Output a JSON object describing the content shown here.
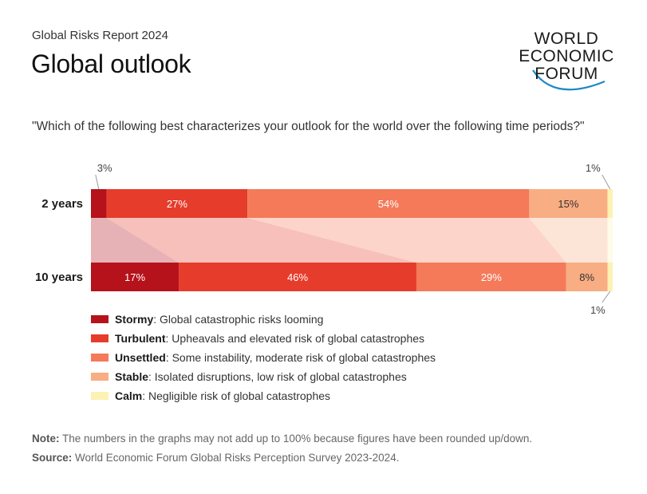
{
  "header": {
    "report": "Global Risks Report 2024",
    "title": "Global outlook"
  },
  "logo": {
    "line1": "WORLD",
    "line2": "ECONOMIC",
    "line3": "FORUM"
  },
  "question": "\"Which of the following best characterizes your outlook for the world over the following time periods?\"",
  "chart_data": {
    "type": "bar",
    "orientation": "horizontal-stacked-100",
    "categories": [
      "2 years",
      "10 years"
    ],
    "series": [
      {
        "name": "Stormy",
        "values": [
          3,
          17
        ],
        "color": "#b5121b"
      },
      {
        "name": "Turbulent",
        "values": [
          27,
          46
        ],
        "color": "#e63c2b"
      },
      {
        "name": "Unsettled",
        "values": [
          54,
          29
        ],
        "color": "#f47a5a"
      },
      {
        "name": "Stable",
        "values": [
          15,
          8
        ],
        "color": "#f8ad82"
      },
      {
        "name": "Calm",
        "values": [
          1,
          1
        ],
        "color": "#fcf2b3"
      }
    ],
    "labels": [
      [
        "3%",
        "27%",
        "54%",
        "15%",
        "1%"
      ],
      [
        "17%",
        "46%",
        "29%",
        "8%",
        "1%"
      ]
    ]
  },
  "legend": [
    {
      "name": "Stormy",
      "desc": ": Global catastrophic risks looming",
      "color": "#b5121b"
    },
    {
      "name": "Turbulent",
      "desc": ": Upheavals and elevated risk of global catastrophes",
      "color": "#e63c2b"
    },
    {
      "name": "Unsettled",
      "desc": ": Some instability, moderate risk of global catastrophes",
      "color": "#f47a5a"
    },
    {
      "name": "Stable",
      "desc": ": Isolated disruptions, low risk of global catastrophes",
      "color": "#f8ad82"
    },
    {
      "name": "Calm",
      "desc": ": Negligible risk of global catastrophes",
      "color": "#fcf2b3"
    }
  ],
  "footer": {
    "note_label": "Note:",
    "note_text": " The numbers in the graphs may not add up to 100% because figures have been rounded up/down.",
    "source_label": "Source:",
    "source_text": " World Economic Forum Global Risks Perception Survey 2023-2024."
  }
}
